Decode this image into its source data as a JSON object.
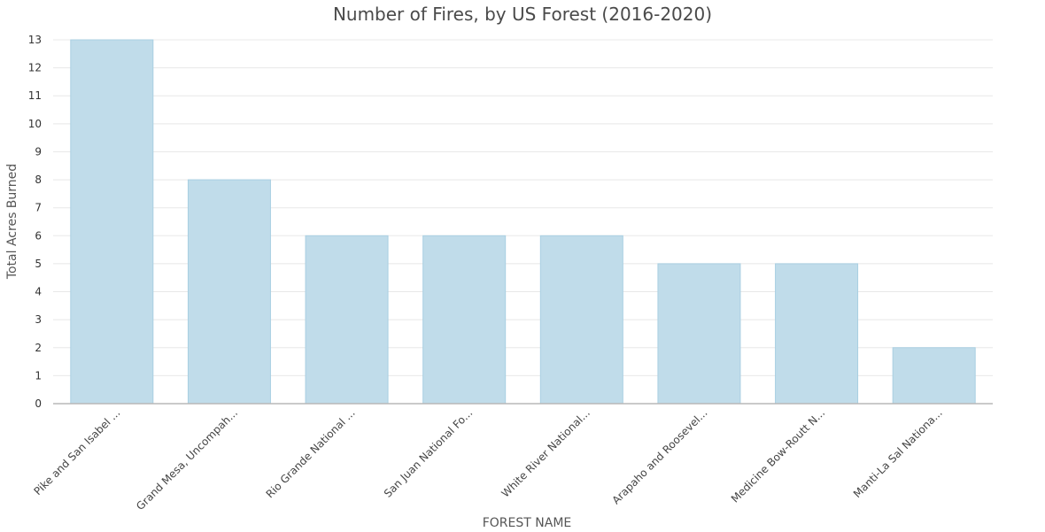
{
  "chart_data": {
    "type": "bar",
    "title": "Number of Fires, by US Forest (2016-2020)",
    "xlabel": "FOREST NAME",
    "ylabel": "Total Acres Burned",
    "categories": [
      "Pike and San Isabel ...",
      "Grand Mesa, Uncompah...",
      "Rio Grande National ...",
      "San Juan National Fo...",
      "White River National...",
      "Arapaho and Roosevel...",
      "Medicine Bow-Routt N...",
      "Manti-La Sal Nationa..."
    ],
    "values": [
      13,
      8,
      6,
      6,
      6,
      5,
      5,
      2
    ],
    "ylim": [
      0,
      13
    ],
    "yticks": [
      "0",
      "1",
      "2",
      "3",
      "4",
      "5",
      "6",
      "7",
      "8",
      "9",
      "10",
      "11",
      "12",
      "13"
    ],
    "grid": true,
    "bar_color": "#c0dcea",
    "bar_border_color": "#a9cfe2"
  }
}
